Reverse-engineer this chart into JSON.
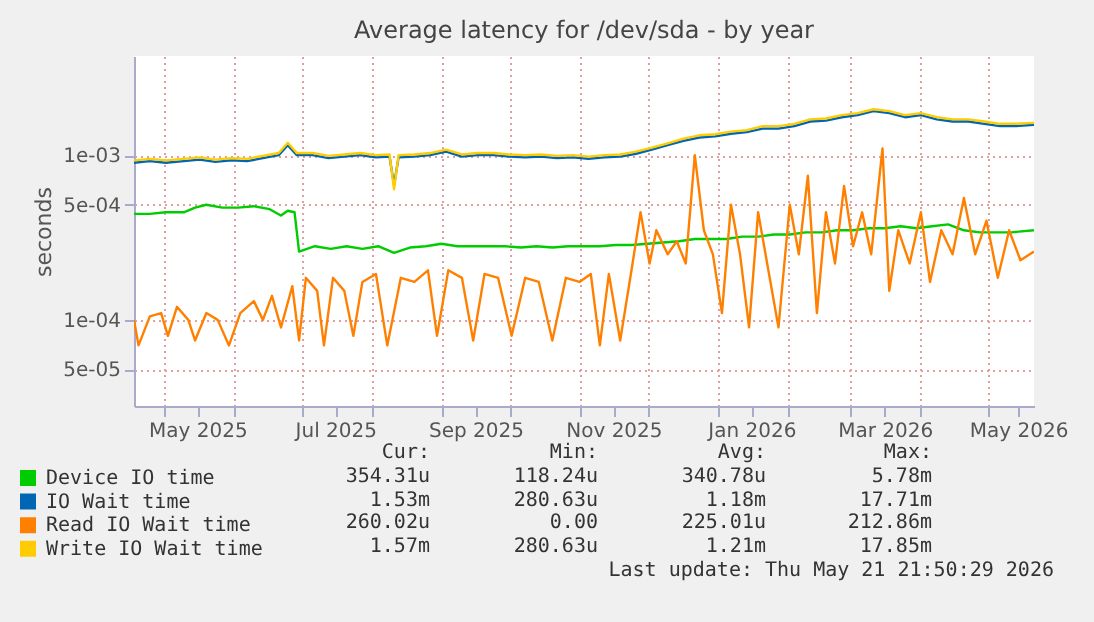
{
  "chart_data": {
    "type": "line",
    "title": "Average latency for /dev/sda - by year",
    "ylabel": "seconds",
    "log": "y",
    "grid": true,
    "legend": "bottom left",
    "xlim": [
      "2025-04-18",
      "2026-05-21"
    ],
    "xticks": [
      {
        "value": "2025-05-01",
        "label": null
      },
      {
        "value": "2025-05-16",
        "label": "May 2025"
      },
      {
        "value": "2025-06-01",
        "label": null
      },
      {
        "value": "2025-07-01",
        "label": null
      },
      {
        "value": "2025-07-16",
        "label": "Jul 2025"
      },
      {
        "value": "2025-08-01",
        "label": null
      },
      {
        "value": "2025-09-01",
        "label": null
      },
      {
        "value": "2025-09-16",
        "label": "Sep 2025"
      },
      {
        "value": "2025-10-01",
        "label": null
      },
      {
        "value": "2025-11-01",
        "label": null
      },
      {
        "value": "2025-11-16",
        "label": "Nov 2025"
      },
      {
        "value": "2025-12-01",
        "label": null
      },
      {
        "value": "2026-01-01",
        "label": null
      },
      {
        "value": "2026-01-16",
        "label": "Jan 2026"
      },
      {
        "value": "2026-02-01",
        "label": null
      },
      {
        "value": "2026-03-01",
        "label": null
      },
      {
        "value": "2026-03-16",
        "label": "Mar 2026"
      },
      {
        "value": "2026-04-01",
        "label": null
      },
      {
        "value": "2026-05-01",
        "label": null
      },
      {
        "value": "2026-05-14",
        "label": "May 2026"
      }
    ],
    "ylim": [
      3e-05,
      0.004
    ],
    "yticks": [
      {
        "value": 5e-05,
        "label": "5e-05"
      },
      {
        "value": 0.0001,
        "label": "1e-04"
      },
      {
        "value": 0.0005,
        "label": "5e-04"
      },
      {
        "value": 0.001,
        "label": "1e-03"
      }
    ],
    "series": [
      {
        "name": "Device IO time",
        "color": "#00cc00",
        "x": [
          "2025-04-18",
          "2025-04-25",
          "2025-05-02",
          "2025-05-10",
          "2025-05-15",
          "2025-05-20",
          "2025-05-27",
          "2025-06-03",
          "2025-06-10",
          "2025-06-17",
          "2025-06-22",
          "2025-06-25",
          "2025-06-28",
          "2025-06-30",
          "2025-07-07",
          "2025-07-14",
          "2025-07-21",
          "2025-07-28",
          "2025-08-04",
          "2025-08-11",
          "2025-08-18",
          "2025-08-25",
          "2025-09-01",
          "2025-09-08",
          "2025-09-15",
          "2025-09-22",
          "2025-09-29",
          "2025-10-06",
          "2025-10-13",
          "2025-10-20",
          "2025-10-27",
          "2025-11-03",
          "2025-11-10",
          "2025-11-17",
          "2025-11-24",
          "2025-12-01",
          "2025-12-08",
          "2025-12-15",
          "2025-12-22",
          "2025-12-29",
          "2026-01-05",
          "2026-01-12",
          "2026-01-19",
          "2026-01-26",
          "2026-02-02",
          "2026-02-09",
          "2026-02-16",
          "2026-02-23",
          "2026-03-02",
          "2026-03-09",
          "2026-03-16",
          "2026-03-23",
          "2026-03-30",
          "2026-04-06",
          "2026-04-13",
          "2026-04-20",
          "2026-04-27",
          "2026-05-04",
          "2026-05-11",
          "2026-05-21"
        ],
        "values": [
          0.00044,
          0.00044,
          0.00045,
          0.00045,
          0.00048,
          0.0005,
          0.00048,
          0.00048,
          0.00049,
          0.00047,
          0.00043,
          0.00046,
          0.00045,
          0.00026,
          0.00028,
          0.00027,
          0.00028,
          0.00027,
          0.00028,
          0.000255,
          0.000275,
          0.00028,
          0.00029,
          0.00028,
          0.00028,
          0.00028,
          0.00028,
          0.000275,
          0.00028,
          0.000275,
          0.00028,
          0.00028,
          0.00028,
          0.000285,
          0.000285,
          0.00029,
          0.000295,
          0.0003,
          0.00031,
          0.00031,
          0.00031,
          0.00032,
          0.00032,
          0.00033,
          0.00033,
          0.00034,
          0.00034,
          0.00035,
          0.00035,
          0.00036,
          0.00036,
          0.00037,
          0.00036,
          0.00037,
          0.00038,
          0.00035,
          0.00034,
          0.00034,
          0.00034,
          0.00035
        ]
      },
      {
        "name": "IO Wait time",
        "color": "#0066b3",
        "x": [
          "2025-04-18",
          "2025-04-25",
          "2025-05-02",
          "2025-05-10",
          "2025-05-17",
          "2025-05-24",
          "2025-05-31",
          "2025-06-07",
          "2025-06-14",
          "2025-06-21",
          "2025-06-25",
          "2025-06-29",
          "2025-07-06",
          "2025-07-13",
          "2025-07-20",
          "2025-07-27",
          "2025-08-03",
          "2025-08-09",
          "2025-08-11",
          "2025-08-13",
          "2025-08-20",
          "2025-08-27",
          "2025-09-03",
          "2025-09-10",
          "2025-09-17",
          "2025-09-24",
          "2025-10-01",
          "2025-10-08",
          "2025-10-15",
          "2025-10-22",
          "2025-10-29",
          "2025-11-05",
          "2025-11-12",
          "2025-11-19",
          "2025-11-26",
          "2025-12-03",
          "2025-12-10",
          "2025-12-17",
          "2025-12-24",
          "2025-12-31",
          "2026-01-07",
          "2026-01-14",
          "2026-01-21",
          "2026-01-28",
          "2026-02-04",
          "2026-02-11",
          "2026-02-18",
          "2026-02-25",
          "2026-03-04",
          "2026-03-11",
          "2026-03-18",
          "2026-03-25",
          "2026-04-01",
          "2026-04-08",
          "2026-04-15",
          "2026-04-22",
          "2026-04-29",
          "2026-05-06",
          "2026-05-13",
          "2026-05-21"
        ],
        "values": [
          0.0009,
          0.00092,
          0.0009,
          0.00092,
          0.00094,
          0.00091,
          0.00093,
          0.00092,
          0.00096,
          0.001,
          0.00115,
          0.001,
          0.001,
          0.00096,
          0.00098,
          0.001,
          0.00097,
          0.00098,
          0.00066,
          0.00097,
          0.00098,
          0.001,
          0.00105,
          0.00098,
          0.001,
          0.001,
          0.00098,
          0.00097,
          0.00098,
          0.00096,
          0.00097,
          0.00095,
          0.00097,
          0.00098,
          0.00102,
          0.00108,
          0.00115,
          0.00122,
          0.00128,
          0.0013,
          0.00135,
          0.00138,
          0.00145,
          0.00145,
          0.0015,
          0.0016,
          0.00162,
          0.0017,
          0.00175,
          0.00185,
          0.0018,
          0.0017,
          0.00175,
          0.00165,
          0.0016,
          0.0016,
          0.00155,
          0.0015,
          0.0015,
          0.00153
        ]
      },
      {
        "name": "Read IO Wait time",
        "color": "#ff8000",
        "x": [
          "2025-04-18",
          "2025-04-20",
          "2025-04-25",
          "2025-04-30",
          "2025-05-03",
          "2025-05-07",
          "2025-05-12",
          "2025-05-15",
          "2025-05-20",
          "2025-05-25",
          "2025-05-30",
          "2025-06-04",
          "2025-06-10",
          "2025-06-14",
          "2025-06-18",
          "2025-06-22",
          "2025-06-27",
          "2025-06-30",
          "2025-07-03",
          "2025-07-08",
          "2025-07-11",
          "2025-07-15",
          "2025-07-20",
          "2025-07-24",
          "2025-07-28",
          "2025-08-03",
          "2025-08-08",
          "2025-08-14",
          "2025-08-20",
          "2025-08-26",
          "2025-08-30",
          "2025-09-04",
          "2025-09-10",
          "2025-09-15",
          "2025-09-20",
          "2025-09-26",
          "2025-10-02",
          "2025-10-08",
          "2025-10-14",
          "2025-10-20",
          "2025-10-26",
          "2025-11-01",
          "2025-11-06",
          "2025-11-10",
          "2025-11-14",
          "2025-11-19",
          "2025-11-24",
          "2025-11-28",
          "2025-12-02",
          "2025-12-05",
          "2025-12-10",
          "2025-12-14",
          "2025-12-18",
          "2025-12-22",
          "2025-12-26",
          "2025-12-30",
          "2026-01-03",
          "2026-01-07",
          "2026-01-11",
          "2026-01-15",
          "2026-01-19",
          "2026-01-23",
          "2026-01-28",
          "2026-02-02",
          "2026-02-06",
          "2026-02-10",
          "2026-02-14",
          "2026-02-18",
          "2026-02-22",
          "2026-02-26",
          "2026-03-02",
          "2026-03-06",
          "2026-03-10",
          "2026-03-15",
          "2026-03-18",
          "2026-03-22",
          "2026-03-27",
          "2026-04-01",
          "2026-04-05",
          "2026-04-10",
          "2026-04-15",
          "2026-04-20",
          "2026-04-25",
          "2026-04-30",
          "2026-05-05",
          "2026-05-10",
          "2026-05-15",
          "2026-05-21"
        ],
        "values": [
          0.0001,
          7e-05,
          0.000105,
          0.00011,
          8e-05,
          0.00012,
          0.0001,
          7.5e-05,
          0.00011,
          0.0001,
          7e-05,
          0.00011,
          0.00013,
          0.0001,
          0.00014,
          9e-05,
          0.00016,
          7.5e-05,
          0.00018,
          0.00015,
          7e-05,
          0.00018,
          0.00015,
          8e-05,
          0.00017,
          0.00019,
          7e-05,
          0.00018,
          0.00017,
          0.0002,
          8e-05,
          0.0002,
          0.00018,
          7.5e-05,
          0.00019,
          0.00018,
          8e-05,
          0.00018,
          0.00017,
          7.5e-05,
          0.00018,
          0.00017,
          0.00019,
          7e-05,
          0.00019,
          7.5e-05,
          0.0002,
          0.00045,
          0.00022,
          0.00035,
          0.00025,
          0.0003,
          0.00022,
          0.001,
          0.00035,
          0.00025,
          0.00011,
          0.0005,
          0.00025,
          9e-05,
          0.00045,
          0.00022,
          9e-05,
          0.0005,
          0.00025,
          0.00075,
          0.00011,
          0.00045,
          0.00022,
          0.00065,
          0.00028,
          0.00045,
          0.00025,
          0.0011,
          0.00015,
          0.00035,
          0.00022,
          0.00045,
          0.00017,
          0.00035,
          0.00025,
          0.00055,
          0.00025,
          0.0004,
          0.00018,
          0.00035,
          0.00023,
          0.00026
        ]
      },
      {
        "name": "Write IO Wait time",
        "color": "#ffcc00",
        "x": [
          "2025-04-18",
          "2025-04-25",
          "2025-05-02",
          "2025-05-10",
          "2025-05-17",
          "2025-05-24",
          "2025-05-31",
          "2025-06-07",
          "2025-06-14",
          "2025-06-21",
          "2025-06-25",
          "2025-06-29",
          "2025-07-06",
          "2025-07-13",
          "2025-07-20",
          "2025-07-27",
          "2025-08-03",
          "2025-08-09",
          "2025-08-11",
          "2025-08-13",
          "2025-08-20",
          "2025-08-27",
          "2025-09-03",
          "2025-09-10",
          "2025-09-17",
          "2025-09-24",
          "2025-10-01",
          "2025-10-08",
          "2025-10-15",
          "2025-10-22",
          "2025-10-29",
          "2025-11-05",
          "2025-11-12",
          "2025-11-19",
          "2025-11-26",
          "2025-12-03",
          "2025-12-10",
          "2025-12-17",
          "2025-12-24",
          "2025-12-31",
          "2026-01-07",
          "2026-01-14",
          "2026-01-21",
          "2026-01-28",
          "2026-02-04",
          "2026-02-11",
          "2026-02-18",
          "2026-02-25",
          "2026-03-04",
          "2026-03-11",
          "2026-03-18",
          "2026-03-25",
          "2026-04-01",
          "2026-04-08",
          "2026-04-15",
          "2026-04-22",
          "2026-04-29",
          "2026-05-06",
          "2026-05-13",
          "2026-05-21"
        ],
        "values": [
          0.00093,
          0.00095,
          0.00093,
          0.00095,
          0.00097,
          0.00094,
          0.00096,
          0.00095,
          0.00099,
          0.00103,
          0.00119,
          0.00103,
          0.00103,
          0.00099,
          0.00101,
          0.00103,
          0.001,
          0.00101,
          0.00062,
          0.001,
          0.00101,
          0.00103,
          0.00108,
          0.00101,
          0.00103,
          0.00103,
          0.00101,
          0.001,
          0.00101,
          0.00099,
          0.001,
          0.00098,
          0.001,
          0.00101,
          0.00105,
          0.00111,
          0.00118,
          0.00126,
          0.00132,
          0.00134,
          0.00139,
          0.00142,
          0.0015,
          0.0015,
          0.00155,
          0.00165,
          0.00167,
          0.00175,
          0.0018,
          0.0019,
          0.00185,
          0.00175,
          0.0018,
          0.0017,
          0.00165,
          0.00165,
          0.0016,
          0.00155,
          0.00155,
          0.00157
        ]
      }
    ],
    "annotations": [
      "Cur:",
      "Min:",
      "Avg:",
      "Max:",
      "354.31u",
      "118.24u",
      "340.78u",
      "5.78m",
      "1.53m",
      "280.63u",
      "1.18m",
      "17.71m",
      "260.02u",
      "0.00",
      "225.01u",
      "212.86m",
      "1.57m",
      "280.63u",
      "1.21m",
      "17.85m",
      "Last update: Thu May 21 21:50:29 2026"
    ]
  }
}
